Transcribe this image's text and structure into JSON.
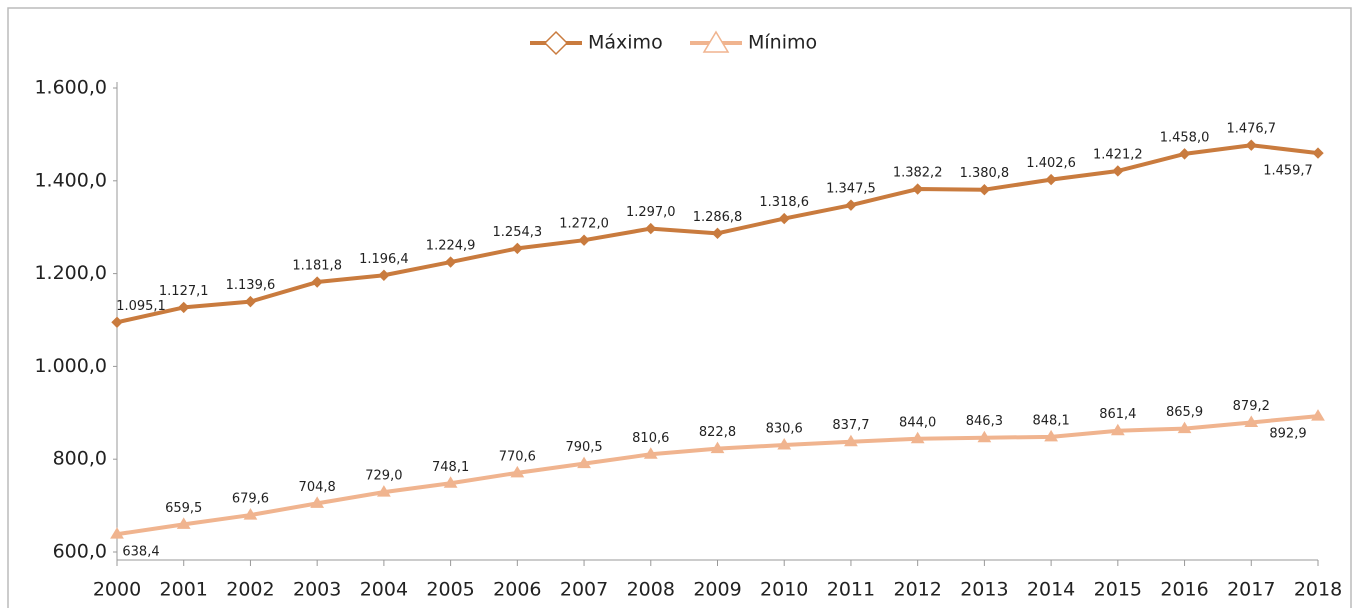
{
  "chart_data": {
    "type": "line",
    "categories": [
      "2000",
      "2001",
      "2002",
      "2003",
      "2004",
      "2005",
      "2006",
      "2007",
      "2008",
      "2009",
      "2010",
      "2011",
      "2012",
      "2013",
      "2014",
      "2015",
      "2016",
      "2017",
      "2018"
    ],
    "series": [
      {
        "name": "Máximo",
        "color": "#c97b3e",
        "marker": "diamond",
        "values": [
          1095.1,
          1127.1,
          1139.6,
          1181.8,
          1196.4,
          1224.9,
          1254.3,
          1272.0,
          1297.0,
          1286.8,
          1318.6,
          1347.5,
          1382.2,
          1380.8,
          1402.6,
          1421.2,
          1458.0,
          1476.7,
          1459.7
        ],
        "value_labels": [
          "1.095,1",
          "1.127,1",
          "1.139,6",
          "1.181,8",
          "1.196,4",
          "1.224,9",
          "1.254,3",
          "1.272,0",
          "1.297,0",
          "1.286,8",
          "1.318,6",
          "1.347,5",
          "1.382,2",
          "1.380,8",
          "1.402,6",
          "1.421,2",
          "1.458,0",
          "1.476,7",
          "1.459,7"
        ]
      },
      {
        "name": "Mínimo",
        "color": "#f0b48f",
        "marker": "triangle",
        "values": [
          638.4,
          659.5,
          679.6,
          704.8,
          729.0,
          748.1,
          770.6,
          790.5,
          810.6,
          822.8,
          830.6,
          837.7,
          844.0,
          846.3,
          848.1,
          861.4,
          865.9,
          879.2,
          892.9
        ],
        "value_labels": [
          "638,4",
          "659,5",
          "679,6",
          "704,8",
          "729,0",
          "748,1",
          "770,6",
          "790,5",
          "810,6",
          "822,8",
          "830,6",
          "837,7",
          "844,0",
          "846,3",
          "848,1",
          "861,4",
          "865,9",
          "879,2",
          "892,9"
        ]
      }
    ],
    "ylim": [
      600,
      1600
    ],
    "yticks": [
      {
        "value": 600,
        "label": "600,0"
      },
      {
        "value": 800,
        "label": "800,0"
      },
      {
        "value": 1000,
        "label": "1.000,0"
      },
      {
        "value": 1200,
        "label": "1.200,0"
      },
      {
        "value": 1400,
        "label": "1.400,0"
      },
      {
        "value": 1600,
        "label": "1.600,0"
      }
    ],
    "legend": "top"
  }
}
